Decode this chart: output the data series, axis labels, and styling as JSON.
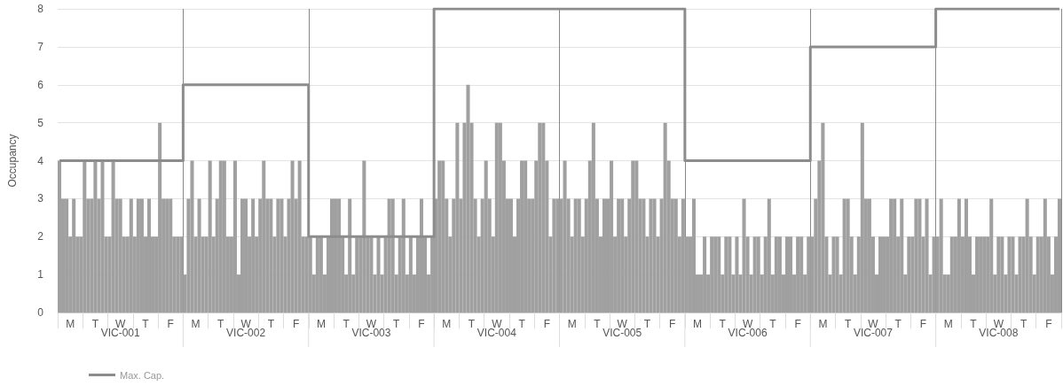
{
  "chart_data": {
    "type": "bar",
    "ylabel": "Occupancy",
    "categories": [
      null,
      null,
      null,
      "M",
      null,
      null,
      null,
      null,
      null,
      null,
      "T",
      null,
      null,
      null,
      null,
      null,
      null,
      "W",
      null,
      null,
      null,
      null,
      null,
      null,
      "T",
      null,
      null,
      null,
      null,
      null,
      null,
      "F",
      null,
      null,
      null,
      null,
      null,
      null,
      "M",
      null,
      null,
      null,
      null,
      null,
      null,
      "T",
      null,
      null,
      null,
      null,
      null,
      null,
      "W",
      null,
      null,
      null,
      null,
      null,
      null,
      "T",
      null,
      null,
      null,
      null,
      null,
      null,
      "F",
      null,
      null,
      null,
      null,
      null,
      null,
      "M",
      null,
      null,
      null,
      null,
      null,
      null,
      "T",
      null,
      null,
      null,
      null,
      null,
      null,
      "W",
      null,
      null,
      null,
      null,
      null,
      null,
      "T",
      null,
      null,
      null,
      null,
      null,
      null,
      "F",
      null,
      null,
      null,
      null,
      null,
      null,
      "M",
      null,
      null,
      null,
      null,
      null,
      null,
      "T",
      null,
      null,
      null,
      null,
      null,
      null,
      "W",
      null,
      null,
      null,
      null,
      null,
      null,
      "T",
      null,
      null,
      null,
      null,
      null,
      null,
      "F",
      null,
      null,
      null,
      null,
      null,
      null,
      "M",
      null,
      null,
      null,
      null,
      null,
      null,
      "T",
      null,
      null,
      null,
      null,
      null,
      null,
      "W",
      null,
      null,
      null,
      null,
      null,
      null,
      "T",
      null,
      null,
      null,
      null,
      null,
      null,
      "F",
      null,
      null,
      null,
      null,
      null,
      null,
      "M",
      null,
      null,
      null,
      null,
      null,
      null,
      "T",
      null,
      null,
      null,
      null,
      null,
      null,
      "W",
      null,
      null,
      null,
      null,
      null,
      null,
      "T",
      null,
      null,
      null,
      null,
      null,
      null,
      "F",
      null,
      null,
      null,
      null,
      null,
      null,
      "M",
      null,
      null,
      null,
      null,
      null,
      null,
      "T",
      null,
      null,
      null,
      null,
      null,
      null,
      "W",
      null,
      null,
      null,
      null,
      null,
      null,
      "T",
      null,
      null,
      null,
      null,
      null,
      null,
      "F",
      null,
      null,
      null,
      null,
      null,
      null,
      "M",
      null,
      null,
      null,
      null,
      null,
      null,
      "T",
      null,
      null,
      null,
      null,
      null,
      null,
      "W",
      null,
      null,
      null,
      null,
      null,
      null,
      "T",
      null,
      null,
      null,
      null,
      null,
      null,
      "F",
      null,
      null,
      null
    ],
    "series": [
      {
        "color": "#a0a0a0",
        "values": [
          4,
          3,
          3,
          2,
          3,
          2,
          2,
          4,
          3,
          3,
          4,
          3,
          4,
          2,
          2,
          4,
          3,
          3,
          2,
          2,
          3,
          2,
          3,
          3,
          2,
          3,
          2,
          2,
          5,
          3,
          3,
          3,
          2,
          2,
          2,
          1,
          3,
          4,
          2,
          3,
          2,
          2,
          4,
          2,
          3,
          4,
          4,
          2,
          2,
          4,
          1,
          3,
          3,
          2,
          3,
          2,
          3,
          4,
          3,
          3,
          2,
          3,
          3,
          2,
          3,
          4,
          3,
          4,
          2,
          2,
          2,
          1,
          2,
          2,
          1,
          2,
          3,
          3,
          3,
          2,
          1,
          3,
          1,
          2,
          2,
          4,
          2,
          2,
          1,
          2,
          1,
          2,
          3,
          3,
          1,
          2,
          3,
          1,
          2,
          1,
          2,
          3,
          2,
          1,
          2,
          3,
          4,
          4,
          3,
          2,
          3,
          5,
          3,
          5,
          6,
          5,
          3,
          2,
          3,
          4,
          3,
          2,
          5,
          5,
          4,
          3,
          3,
          2,
          3,
          4,
          4,
          3,
          3,
          4,
          5,
          5,
          4,
          2,
          3,
          3,
          3,
          4,
          3,
          2,
          3,
          3,
          2,
          3,
          4,
          5,
          3,
          2,
          3,
          3,
          4,
          2,
          3,
          3,
          2,
          3,
          4,
          4,
          3,
          3,
          2,
          3,
          3,
          2,
          3,
          5,
          4,
          3,
          3,
          2,
          3,
          2,
          2,
          3,
          1,
          1,
          2,
          1,
          2,
          2,
          2,
          1,
          2,
          2,
          1,
          2,
          1,
          3,
          2,
          1,
          2,
          2,
          1,
          2,
          3,
          1,
          2,
          2,
          1,
          2,
          2,
          1,
          2,
          2,
          1,
          2,
          2,
          3,
          4,
          5,
          2,
          1,
          2,
          2,
          1,
          3,
          3,
          2,
          1,
          2,
          5,
          3,
          3,
          2,
          1,
          2,
          2,
          2,
          3,
          3,
          2,
          3,
          1,
          2,
          2,
          3,
          3,
          2,
          3,
          1,
          2,
          2,
          3,
          1,
          1,
          2,
          2,
          3,
          2,
          3,
          2,
          1,
          2,
          2,
          2,
          2,
          3,
          1,
          2,
          2,
          1,
          2,
          2,
          1,
          2,
          2,
          3,
          2,
          1,
          2,
          2,
          3,
          2,
          1,
          2,
          3
        ]
      },
      {
        "type": "step",
        "name": "Max. Cap.",
        "color": "#8c8c8c",
        "values": [
          4,
          4,
          4,
          4,
          4,
          4,
          4,
          4,
          4,
          4,
          4,
          4,
          4,
          4,
          4,
          4,
          4,
          4,
          4,
          4,
          4,
          4,
          4,
          4,
          4,
          4,
          4,
          4,
          4,
          4,
          4,
          4,
          4,
          4,
          4,
          6,
          6,
          6,
          6,
          6,
          6,
          6,
          6,
          6,
          6,
          6,
          6,
          6,
          6,
          6,
          6,
          6,
          6,
          6,
          6,
          6,
          6,
          6,
          6,
          6,
          6,
          6,
          6,
          6,
          6,
          6,
          6,
          6,
          6,
          6,
          2,
          2,
          2,
          2,
          2,
          2,
          2,
          2,
          2,
          2,
          2,
          2,
          2,
          2,
          2,
          2,
          2,
          2,
          2,
          2,
          2,
          2,
          2,
          2,
          2,
          2,
          2,
          2,
          2,
          2,
          2,
          2,
          2,
          2,
          2,
          8,
          8,
          8,
          8,
          8,
          8,
          8,
          8,
          8,
          8,
          8,
          8,
          8,
          8,
          8,
          8,
          8,
          8,
          8,
          8,
          8,
          8,
          8,
          8,
          8,
          8,
          8,
          8,
          8,
          8,
          8,
          8,
          8,
          8,
          8,
          8,
          8,
          8,
          8,
          8,
          8,
          8,
          8,
          8,
          8,
          8,
          8,
          8,
          8,
          8,
          8,
          8,
          8,
          8,
          8,
          8,
          8,
          8,
          8,
          8,
          8,
          8,
          8,
          8,
          8,
          8,
          8,
          8,
          8,
          8,
          4,
          4,
          4,
          4,
          4,
          4,
          4,
          4,
          4,
          4,
          4,
          4,
          4,
          4,
          4,
          4,
          4,
          4,
          4,
          4,
          4,
          4,
          4,
          4,
          4,
          4,
          4,
          4,
          4,
          4,
          4,
          4,
          4,
          4,
          4,
          7,
          7,
          7,
          7,
          7,
          7,
          7,
          7,
          7,
          7,
          7,
          7,
          7,
          7,
          7,
          7,
          7,
          7,
          7,
          7,
          7,
          7,
          7,
          7,
          7,
          7,
          7,
          7,
          7,
          7,
          7,
          7,
          7,
          7,
          7,
          8,
          8,
          8,
          8,
          8,
          8,
          8,
          8,
          8,
          8,
          8,
          8,
          8,
          8,
          8,
          8,
          8,
          8,
          8,
          8,
          8,
          8,
          8,
          8,
          8,
          8,
          8,
          8,
          8,
          8,
          8,
          8,
          8,
          8,
          8
        ]
      }
    ],
    "annotations": [
      "VIC-001",
      "VIC-002",
      "VIC-003",
      "VIC-004",
      "VIC-005",
      "VIC-006",
      "VIC-007",
      "VIC-008"
    ],
    "ylim": [
      0,
      8
    ],
    "yticks": [
      0,
      1,
      2,
      3,
      4,
      5,
      6,
      7,
      8
    ],
    "grid": "y",
    "legend": "bottom left"
  }
}
